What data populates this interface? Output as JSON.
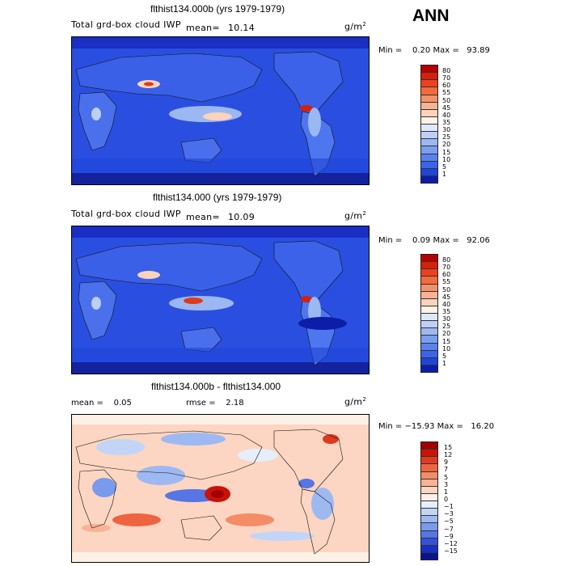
{
  "season": "ANN",
  "panels": [
    {
      "title": "flthist134.000b (yrs 1979-1979)",
      "variable": "Total grd-box cloud IWP",
      "mean_label": "mean=",
      "mean_value": "10.14",
      "units": "g/m",
      "units_sup": "2",
      "minmax": "Min =    0.20 Max =   93.89",
      "colorbar_labels": [
        "80",
        "70",
        "60",
        "55",
        "50",
        "45",
        "40",
        "35",
        "30",
        "25",
        "20",
        "15",
        "10",
        "5",
        "1"
      ],
      "colorbar_colors": [
        "#b80000",
        "#d6200a",
        "#ec4020",
        "#f26a3d",
        "#f69068",
        "#f8b294",
        "#fbd3bd",
        "#fdf2e6",
        "#dfe8fb",
        "#bcd0f7",
        "#9cb8f2",
        "#7b9ef0",
        "#5a82ef",
        "#3b64ea",
        "#1f45d8",
        "#0c1ea8"
      ]
    },
    {
      "title": "flthist134.000 (yrs 1979-1979)",
      "variable": "Total grd-box cloud IWP",
      "mean_label": "mean=",
      "mean_value": "10.09",
      "units": "g/m",
      "units_sup": "2",
      "minmax": "Min =    0.09 Max =   92.06",
      "colorbar_labels": [
        "80",
        "70",
        "60",
        "55",
        "50",
        "45",
        "40",
        "35",
        "30",
        "25",
        "20",
        "15",
        "10",
        "5",
        "1"
      ],
      "colorbar_colors": [
        "#b80000",
        "#d6200a",
        "#ec4020",
        "#f26a3d",
        "#f69068",
        "#f8b294",
        "#fbd3bd",
        "#fdf2e6",
        "#dfe8fb",
        "#bcd0f7",
        "#9cb8f2",
        "#7b9ef0",
        "#5a82ef",
        "#3b64ea",
        "#1f45d8",
        "#0c1ea8"
      ]
    },
    {
      "title": "flthist134.000b - flthist134.000",
      "mean_text": "mean =    0.05",
      "rmse_text": "rmse =    2.18",
      "units": "g/m",
      "units_sup": "2",
      "minmax": "Min = −15.93 Max =   16.20",
      "colorbar_labels": [
        "15",
        "12",
        "9",
        "7",
        "5",
        "3",
        "1",
        "0",
        "−1",
        "−3",
        "−5",
        "−7",
        "−9",
        "−12",
        "−15"
      ],
      "colorbar_colors": [
        "#a30000",
        "#c7140a",
        "#e03a1e",
        "#ee6440",
        "#f48c68",
        "#f9b394",
        "#fcd6c2",
        "#fdf0e6",
        "#e6eefb",
        "#c3d5f7",
        "#9eb9f1",
        "#7a9aec",
        "#5576e3",
        "#3352d8",
        "#1730c2",
        "#0b1490"
      ]
    }
  ]
}
